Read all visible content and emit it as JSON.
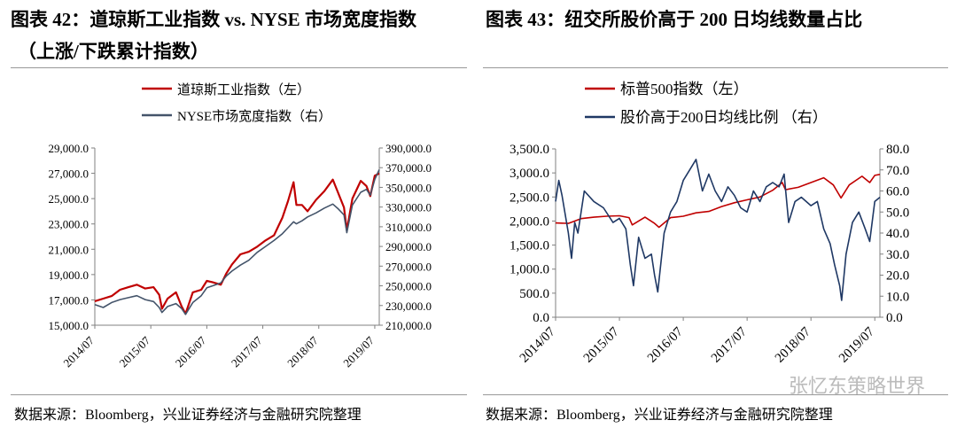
{
  "chart_data": [
    {
      "type": "line",
      "fig_title_line1": "图表 42：道琼斯工业指数  vs. NYSE 市场宽度指数",
      "fig_title_line2": "（上涨/下跌累计指数）",
      "source": "数据来源：Bloomberg，兴业证券经济与金融研究院整理",
      "x_ticks": [
        "2014/07",
        "2015/07",
        "2016/07",
        "2017/07",
        "2018/07",
        "2019/07"
      ],
      "x_range": [
        2014.5,
        2019.58
      ],
      "y_left": {
        "range": [
          15000,
          29000
        ],
        "ticks": [
          "15,000.0",
          "17,000.0",
          "19,000.0",
          "21,000.0",
          "23,000.0",
          "25,000.0",
          "27,000.0",
          "29,000.0"
        ],
        "tick_values": [
          15000,
          17000,
          19000,
          21000,
          23000,
          25000,
          27000,
          29000
        ]
      },
      "y_right": {
        "range": [
          210000,
          390000
        ],
        "ticks": [
          "210,000.0",
          "230,000.0",
          "250,000.0",
          "270,000.0",
          "290,000.0",
          "310,000.0",
          "330,000.0",
          "350,000.0",
          "370,000.0",
          "390,000.0"
        ],
        "tick_values": [
          210000,
          230000,
          250000,
          270000,
          290000,
          310000,
          330000,
          350000,
          370000,
          390000
        ]
      },
      "series": [
        {
          "name": "道琼斯工业指数（左）",
          "axis": "left",
          "color": "#c00000",
          "x": [
            2014.5,
            2014.65,
            2014.8,
            2014.95,
            2015.1,
            2015.25,
            2015.4,
            2015.55,
            2015.65,
            2015.7,
            2015.8,
            2015.95,
            2016.05,
            2016.12,
            2016.25,
            2016.4,
            2016.5,
            2016.6,
            2016.75,
            2016.85,
            2016.95,
            2017.1,
            2017.25,
            2017.4,
            2017.55,
            2017.7,
            2017.85,
            2017.95,
            2018.05,
            2018.1,
            2018.2,
            2018.3,
            2018.45,
            2018.6,
            2018.75,
            2018.85,
            2018.95,
            2019.0,
            2019.1,
            2019.25,
            2019.35,
            2019.42,
            2019.5,
            2019.58
          ],
          "y": [
            16900,
            17100,
            17300,
            17800,
            18000,
            18200,
            17900,
            18000,
            17400,
            16300,
            17100,
            17600,
            16500,
            15900,
            17600,
            17800,
            18500,
            18400,
            18200,
            19100,
            19800,
            20600,
            20800,
            21200,
            21700,
            22100,
            23500,
            24800,
            26300,
            24500,
            24500,
            24000,
            24900,
            25600,
            26500,
            25400,
            24300,
            22500,
            25000,
            26400,
            26000,
            25200,
            26800,
            27000
          ]
        },
        {
          "name": "NYSE市场宽度指数（右）",
          "axis": "right",
          "color": "#44546a",
          "x": [
            2014.5,
            2014.65,
            2014.8,
            2014.95,
            2015.1,
            2015.25,
            2015.4,
            2015.55,
            2015.65,
            2015.7,
            2015.8,
            2015.95,
            2016.05,
            2016.12,
            2016.25,
            2016.4,
            2016.5,
            2016.6,
            2016.75,
            2016.85,
            2016.95,
            2017.1,
            2017.25,
            2017.4,
            2017.55,
            2017.7,
            2017.85,
            2017.95,
            2018.05,
            2018.1,
            2018.2,
            2018.3,
            2018.45,
            2018.6,
            2018.75,
            2018.85,
            2018.95,
            2019.0,
            2019.1,
            2019.25,
            2019.35,
            2019.42,
            2019.5,
            2019.58
          ],
          "y": [
            231000,
            228000,
            233000,
            236000,
            238000,
            240000,
            236000,
            234000,
            228000,
            223000,
            229000,
            232000,
            227000,
            221000,
            233000,
            240000,
            248000,
            250000,
            253000,
            260000,
            265000,
            271000,
            276000,
            284000,
            290000,
            296000,
            303000,
            309000,
            315000,
            313000,
            316000,
            320000,
            324000,
            329000,
            333000,
            328000,
            322000,
            304000,
            332000,
            345000,
            348000,
            342000,
            358000,
            368000
          ]
        }
      ]
    },
    {
      "type": "line",
      "fig_title": "图表 43：纽交所股价高于 200 日均线数量占比",
      "source": "数据来源：Bloomberg，兴业证券经济与金融研究院整理",
      "x_ticks": [
        "2014/07",
        "2015/07",
        "2016/07",
        "2017/07",
        "2018/07",
        "2019/07"
      ],
      "x_range": [
        2014.5,
        2019.58
      ],
      "y_left": {
        "range": [
          0,
          3500
        ],
        "ticks": [
          "0.0",
          "500.0",
          "1,000.0",
          "1,500.0",
          "2,000.0",
          "2,500.0",
          "3,000.0",
          "3,500.0"
        ],
        "tick_values": [
          0,
          500,
          1000,
          1500,
          2000,
          2500,
          3000,
          3500
        ]
      },
      "y_right": {
        "range": [
          0,
          80
        ],
        "ticks": [
          "0.0",
          "10.0",
          "20.0",
          "30.0",
          "40.0",
          "50.0",
          "60.0",
          "70.0",
          "80.0"
        ],
        "tick_values": [
          0,
          10,
          20,
          30,
          40,
          50,
          60,
          70,
          80
        ]
      },
      "series": [
        {
          "name": "标普500指数（左）",
          "axis": "left",
          "color": "#c00000",
          "x": [
            2014.5,
            2014.7,
            2014.9,
            2015.1,
            2015.3,
            2015.5,
            2015.65,
            2015.7,
            2015.9,
            2016.05,
            2016.12,
            2016.3,
            2016.5,
            2016.7,
            2016.9,
            2017.1,
            2017.3,
            2017.5,
            2017.7,
            2017.9,
            2018.05,
            2018.1,
            2018.3,
            2018.5,
            2018.7,
            2018.85,
            2018.97,
            2019.1,
            2019.3,
            2019.42,
            2019.5,
            2019.58
          ],
          "y": [
            1960,
            1950,
            2050,
            2080,
            2100,
            2110,
            2070,
            1920,
            2080,
            1950,
            1870,
            2070,
            2100,
            2170,
            2200,
            2300,
            2380,
            2440,
            2500,
            2640,
            2800,
            2650,
            2700,
            2800,
            2900,
            2750,
            2480,
            2750,
            2930,
            2800,
            2950,
            2970
          ]
        },
        {
          "name": "股价高于200日均线比例 （右）",
          "axis": "right",
          "color": "#1f3864",
          "x": [
            2014.5,
            2014.55,
            2014.6,
            2014.7,
            2014.75,
            2014.8,
            2014.85,
            2014.95,
            2015.1,
            2015.25,
            2015.4,
            2015.5,
            2015.6,
            2015.67,
            2015.72,
            2015.8,
            2015.9,
            2016.0,
            2016.05,
            2016.1,
            2016.2,
            2016.3,
            2016.4,
            2016.5,
            2016.6,
            2016.7,
            2016.8,
            2016.9,
            2017.0,
            2017.1,
            2017.2,
            2017.3,
            2017.4,
            2017.5,
            2017.6,
            2017.7,
            2017.8,
            2017.9,
            2018.0,
            2018.08,
            2018.15,
            2018.25,
            2018.35,
            2018.5,
            2018.6,
            2018.7,
            2018.8,
            2018.87,
            2018.95,
            2018.98,
            2019.05,
            2019.15,
            2019.25,
            2019.35,
            2019.42,
            2019.5,
            2019.58
          ],
          "y": [
            55,
            65,
            58,
            40,
            28,
            45,
            40,
            60,
            55,
            52,
            45,
            47,
            42,
            25,
            15,
            38,
            28,
            30,
            20,
            12,
            40,
            50,
            55,
            65,
            70,
            75,
            60,
            68,
            60,
            55,
            62,
            58,
            52,
            50,
            60,
            55,
            62,
            64,
            62,
            68,
            45,
            55,
            57,
            53,
            55,
            42,
            35,
            25,
            15,
            8,
            30,
            45,
            50,
            42,
            36,
            55,
            57
          ]
        }
      ]
    }
  ],
  "watermark": "张忆东策略世界"
}
